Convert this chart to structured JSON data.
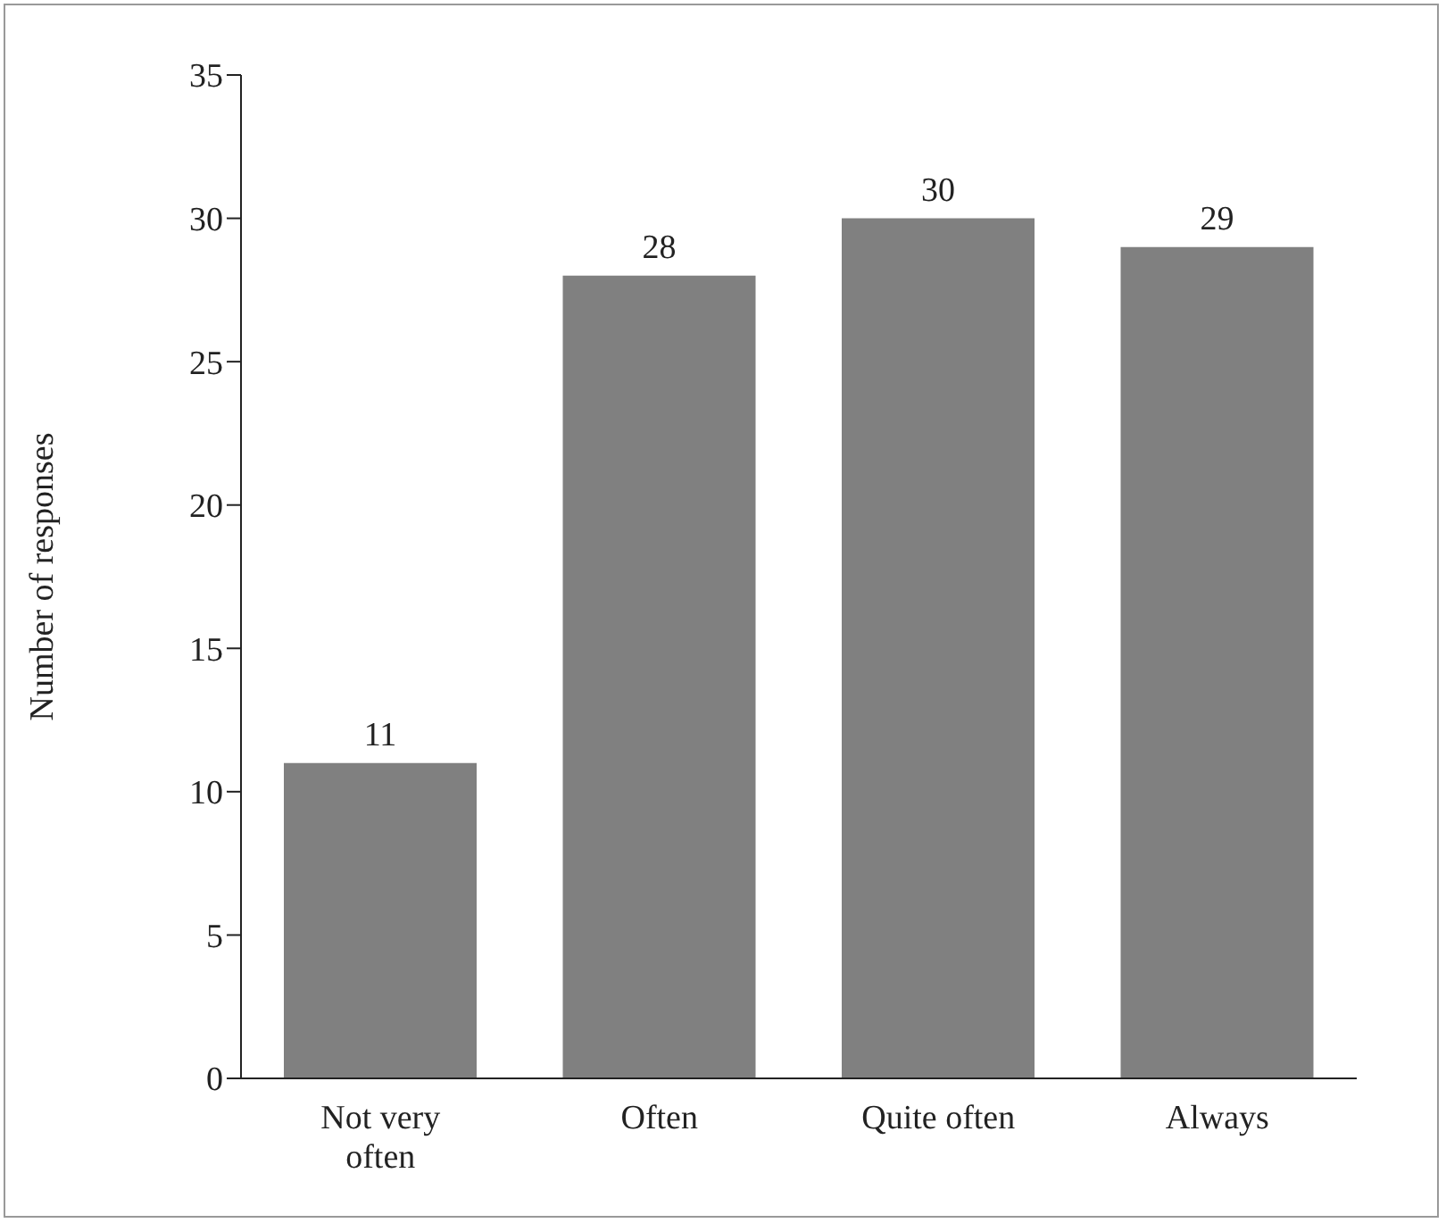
{
  "chart_data": {
    "type": "bar",
    "ylabel": "Number of responses",
    "categories": [
      "Not very often",
      "Often",
      "Quite often",
      "Always"
    ],
    "values": [
      11,
      28,
      30,
      29
    ],
    "color": "#808080",
    "ylim": [
      0,
      35
    ],
    "yticks": [
      0,
      5,
      10,
      15,
      20,
      25,
      30,
      35
    ],
    "data_labels": true
  }
}
